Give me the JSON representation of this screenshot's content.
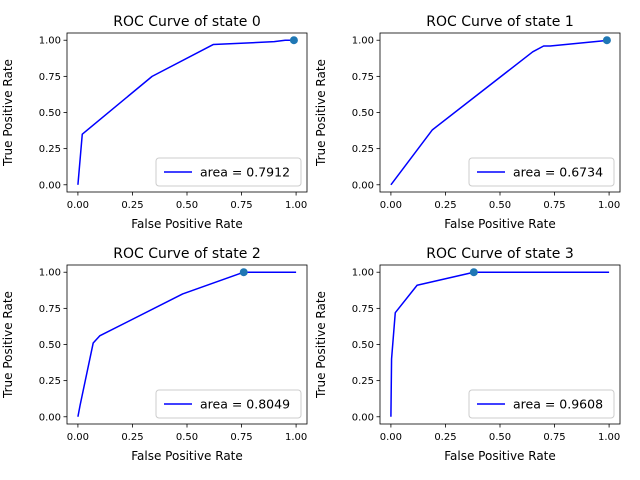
{
  "chart_data": [
    {
      "type": "line",
      "title": "ROC Curve of state 0",
      "xlabel": "False Positive Rate",
      "ylabel": "True Positive Rate",
      "xlim": [
        -0.05,
        1.05
      ],
      "ylim": [
        -0.05,
        1.05
      ],
      "xticks": [
        "0.00",
        "0.25",
        "0.50",
        "0.75",
        "1.00"
      ],
      "yticks": [
        "0.00",
        "0.25",
        "0.50",
        "0.75",
        "1.00"
      ],
      "legend": "lower-right",
      "series": [
        {
          "name": "area = 0.7912",
          "color": "#0000ff",
          "x": [
            0.0,
            0.02,
            0.34,
            0.62,
            0.9,
            0.95,
            1.0
          ],
          "y": [
            0.0,
            0.35,
            0.75,
            0.97,
            0.99,
            1.0,
            1.0
          ]
        }
      ],
      "marker": {
        "x": 0.99,
        "y": 1.0,
        "color": "#1f77b4"
      }
    },
    {
      "type": "line",
      "title": "ROC Curve of state 1",
      "xlabel": "False Positive Rate",
      "ylabel": "True Positive Rate",
      "xlim": [
        -0.05,
        1.05
      ],
      "ylim": [
        -0.05,
        1.05
      ],
      "xticks": [
        "0.00",
        "0.25",
        "0.50",
        "0.75",
        "1.00"
      ],
      "yticks": [
        "0.00",
        "0.25",
        "0.50",
        "0.75",
        "1.00"
      ],
      "legend": "lower-right",
      "series": [
        {
          "name": "area = 0.6734",
          "color": "#0000ff",
          "x": [
            0.0,
            0.19,
            0.65,
            0.7,
            0.73,
            1.0
          ],
          "y": [
            0.0,
            0.38,
            0.92,
            0.96,
            0.96,
            1.0
          ]
        }
      ],
      "marker": {
        "x": 0.99,
        "y": 1.0,
        "color": "#1f77b4"
      }
    },
    {
      "type": "line",
      "title": "ROC Curve of state 2",
      "xlabel": "False Positive Rate",
      "ylabel": "True Positive Rate",
      "xlim": [
        -0.05,
        1.05
      ],
      "ylim": [
        -0.05,
        1.05
      ],
      "xticks": [
        "0.00",
        "0.25",
        "0.50",
        "0.75",
        "1.00"
      ],
      "yticks": [
        "0.00",
        "0.25",
        "0.50",
        "0.75",
        "1.00"
      ],
      "legend": "lower-right",
      "series": [
        {
          "name": "area = 0.8049",
          "color": "#0000ff",
          "x": [
            0.0,
            0.01,
            0.07,
            0.1,
            0.48,
            0.76,
            1.0
          ],
          "y": [
            0.0,
            0.08,
            0.51,
            0.56,
            0.85,
            1.0,
            1.0
          ]
        }
      ],
      "marker": {
        "x": 0.76,
        "y": 1.0,
        "color": "#1f77b4"
      }
    },
    {
      "type": "line",
      "title": "ROC Curve of state 3",
      "xlabel": "False Positive Rate",
      "ylabel": "True Positive Rate",
      "xlim": [
        -0.05,
        1.05
      ],
      "ylim": [
        -0.05,
        1.05
      ],
      "xticks": [
        "0.00",
        "0.25",
        "0.50",
        "0.75",
        "1.00"
      ],
      "yticks": [
        "0.00",
        "0.25",
        "0.50",
        "0.75",
        "1.00"
      ],
      "legend": "lower-right",
      "series": [
        {
          "name": "area = 0.9608",
          "color": "#0000ff",
          "x": [
            0.0,
            0.003,
            0.02,
            0.12,
            0.38,
            1.0
          ],
          "y": [
            0.0,
            0.4,
            0.72,
            0.91,
            1.0,
            1.0
          ]
        }
      ],
      "marker": {
        "x": 0.38,
        "y": 1.0,
        "color": "#1f77b4"
      }
    }
  ]
}
